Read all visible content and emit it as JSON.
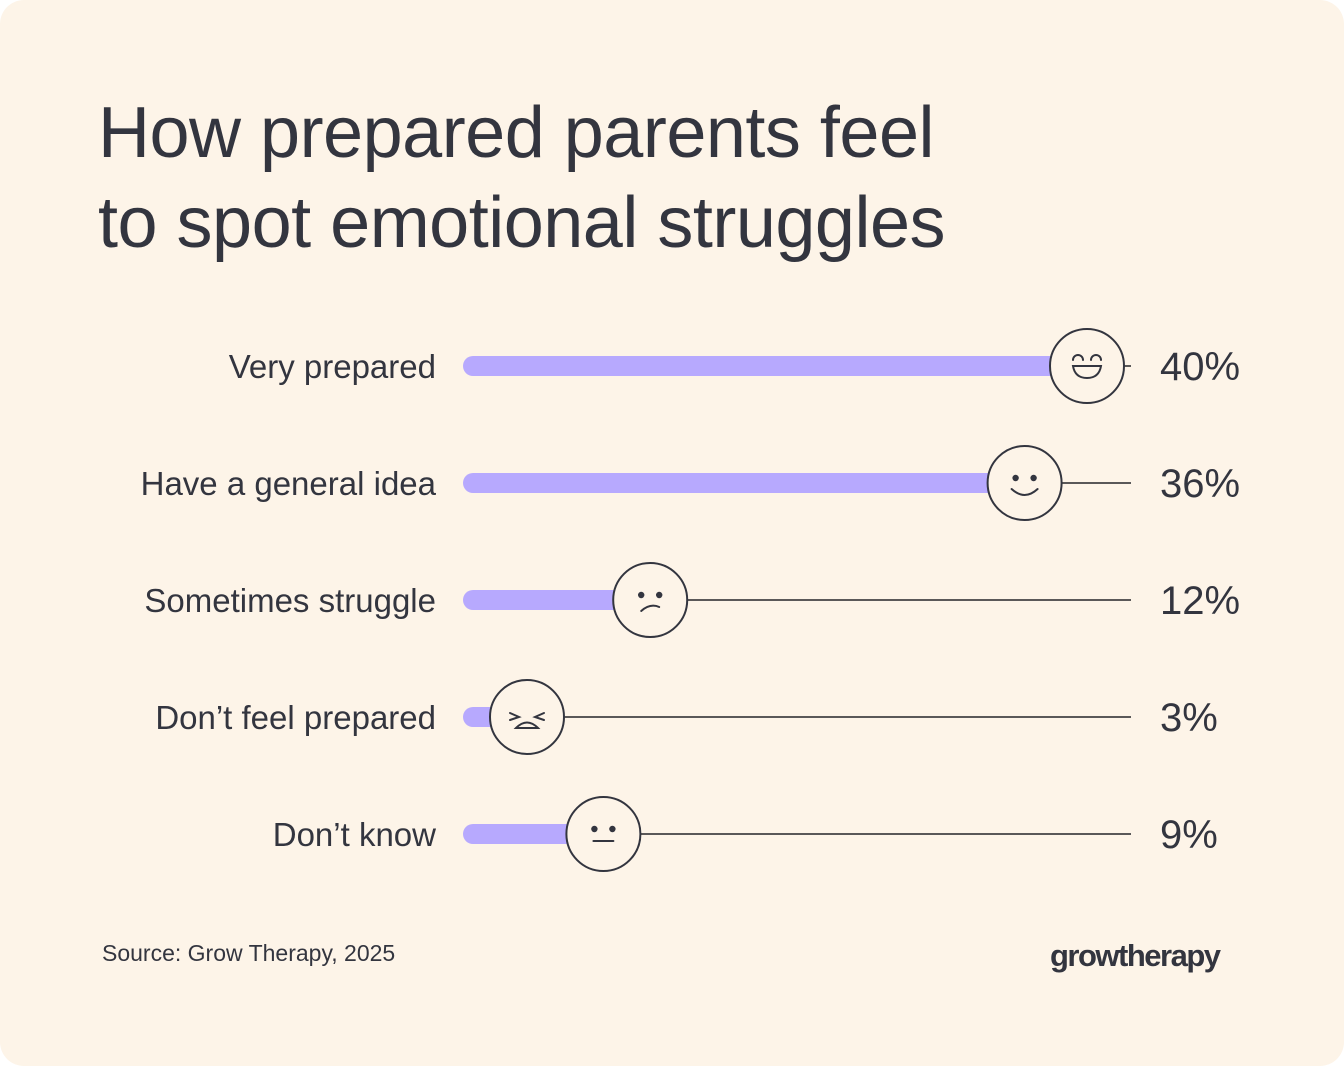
{
  "chart_data": {
    "type": "bar",
    "orientation": "horizontal",
    "title": "How prepared parents feel to spot emotional struggles",
    "title_lines": [
      "How prepared parents feel",
      "to spot emotional struggles"
    ],
    "categories": [
      "Very prepared",
      "Have a general idea",
      "Sometimes struggle",
      "Don’t feel prepared",
      "Don’t know"
    ],
    "values": [
      40,
      36,
      12,
      3,
      9
    ],
    "value_labels": [
      "40%",
      "36%",
      "12%",
      "3%",
      "9%"
    ],
    "face_icons": [
      "grinning-face-icon",
      "smiling-face-icon",
      "frowning-face-icon",
      "squinting-distressed-face-icon",
      "neutral-face-icon"
    ],
    "unit": "%",
    "colors": {
      "bar": "#b7a9fe",
      "track": "#5a5858",
      "text": "#33353f",
      "background": "#fdf4e8"
    }
  },
  "footer": {
    "source": "Source: Grow Therapy, 2025",
    "logo": "growtherapy"
  }
}
